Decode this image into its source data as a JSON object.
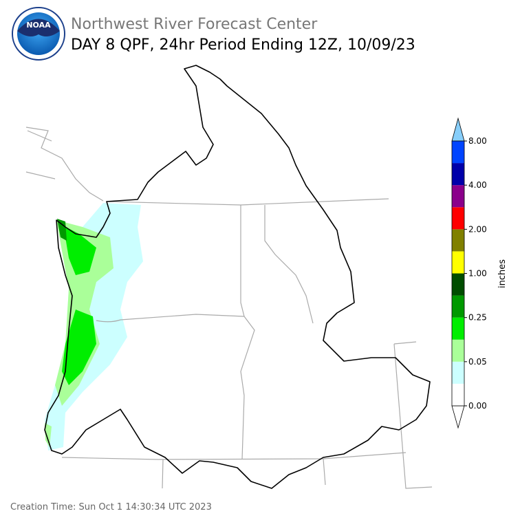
{
  "header": {
    "title": "Northwest River Forecast Center",
    "subtitle": "DAY 8 QPF, 24hr Period Ending 12Z, 10/09/23",
    "logo_text": "NOAA"
  },
  "legend": {
    "unit": "inches",
    "labels": [
      "0.00",
      "0.05",
      "0.25",
      "1.00",
      "2.00",
      "4.00",
      "8.00"
    ],
    "colors": [
      "#ffffff",
      "#ccffff",
      "#aaff99",
      "#00ee00",
      "#009900",
      "#004d00",
      "#ffff00",
      "#808000",
      "#ff0000",
      "#8b008b",
      "#0000aa",
      "#0044ff"
    ],
    "over_color": "#87cefa",
    "under_color": "#ffffff"
  },
  "footer": {
    "creation_time": "Creation Time: Sun Oct 1 14:30:34 UTC 2023"
  }
}
